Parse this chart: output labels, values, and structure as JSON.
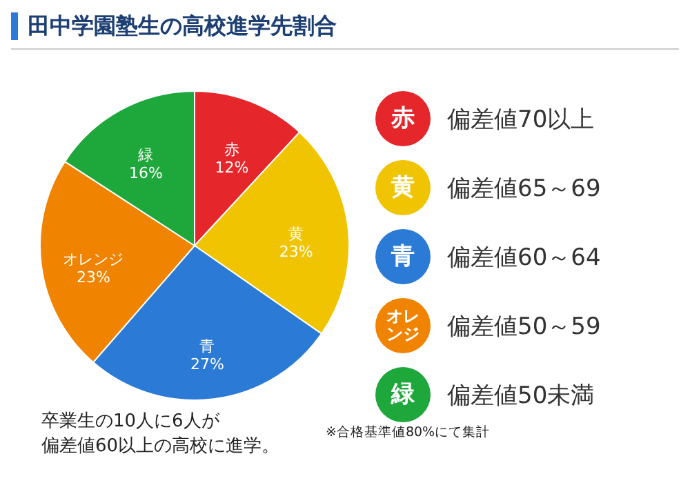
{
  "chart_data": {
    "type": "pie",
    "title": "田中学園塾生の高校進学先割合",
    "categories": [
      "赤",
      "黄",
      "青",
      "オレンジ",
      "緑"
    ],
    "values": [
      12,
      23,
      27,
      23,
      16
    ],
    "value_labels": [
      "12%",
      "23%",
      "27%",
      "23%",
      "16%"
    ],
    "colors": [
      "#e5262b",
      "#f0c400",
      "#2a7ad6",
      "#f08300",
      "#1ea83c"
    ],
    "annotations": [
      "偏差値70以上",
      "偏差値65～69",
      "偏差値60～64",
      "偏差値50～59",
      "偏差値50未満",
      "卒業生の10人に6人が",
      "偏差値60以上の高校に進学。",
      "※合格基準値80%にて集計"
    ]
  }
}
